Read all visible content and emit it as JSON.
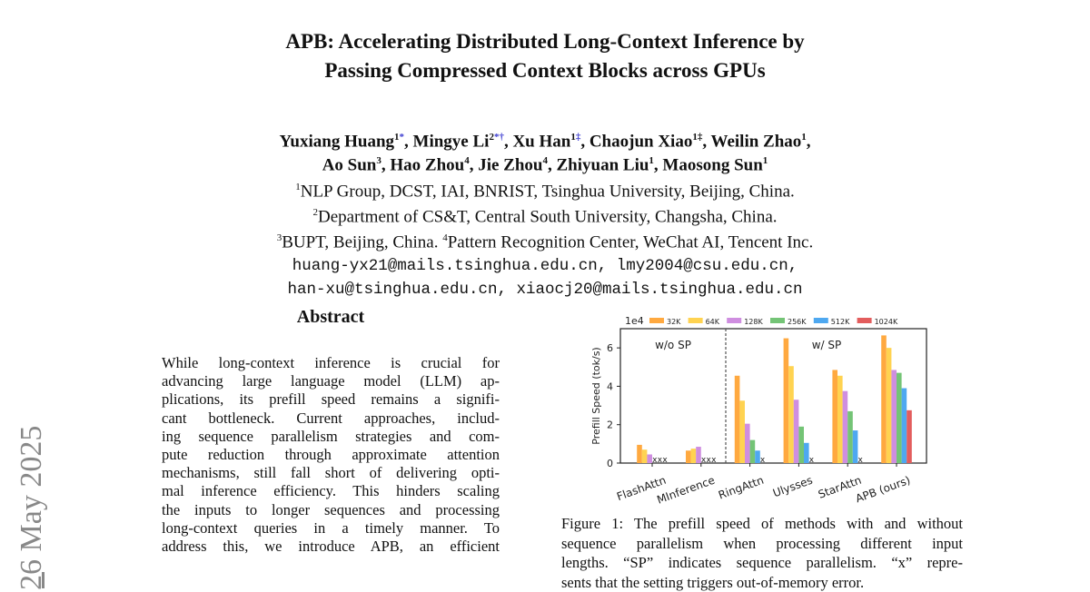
{
  "side_stamp": "26 May 2025",
  "title": {
    "line1": "APB: Accelerating Distributed Long-Context Inference by",
    "line2": "Passing Compressed Context Blocks across GPUs"
  },
  "authors": [
    {
      "name": "Yuxiang Huang",
      "sup": "1",
      "mark": "*"
    },
    {
      "name": "Mingye Li",
      "sup": "2",
      "mark": "*†"
    },
    {
      "name": "Xu Han",
      "sup": "1",
      "mark": "‡"
    },
    {
      "name": "Chaojun Xiao",
      "sup": "1‡",
      "mark": ""
    },
    {
      "name": "Weilin Zhao",
      "sup": "1",
      "mark": ""
    },
    {
      "name": "Ao Sun",
      "sup": "3",
      "mark": ""
    },
    {
      "name": "Hao Zhou",
      "sup": "4",
      "mark": ""
    },
    {
      "name": "Jie Zhou",
      "sup": "4",
      "mark": ""
    },
    {
      "name": "Zhiyuan Liu",
      "sup": "1",
      "mark": ""
    },
    {
      "name": "Maosong Sun",
      "sup": "1",
      "mark": ""
    }
  ],
  "affiliations": {
    "a1_sup": "1",
    "a1": "NLP Group, DCST, IAI, BNRIST, Tsinghua University, Beijing, China.",
    "a2_sup": "2",
    "a2": "Department of CS&T, Central South University, Changsha, China.",
    "a3_sup": "3",
    "a3": "BUPT, Beijing, China. ",
    "a4_sup": "4",
    "a4": "Pattern Recognition Center, WeChat AI, Tencent Inc."
  },
  "emails": {
    "line1": "huang-yx21@mails.tsinghua.edu.cn, lmy2004@csu.edu.cn,",
    "line2": "han-xu@tsinghua.edu.cn, xiaocj20@mails.tsinghua.edu.cn"
  },
  "abstract": {
    "heading": "Abstract",
    "lines": [
      "While long-context inference is crucial for",
      "advancing large language model (LLM) ap-",
      "plications, its prefill speed remains a signifi-",
      "cant bottleneck. Current approaches, includ-",
      "ing sequence parallelism strategies and com-",
      "pute reduction through approximate attention",
      "mechanisms, still fall short of delivering opti-",
      "mal inference efficiency. This hinders scaling",
      "the inputs to longer sequences and processing",
      "long-context queries in a timely manner. To",
      "address this, we introduce APB, an efficient"
    ]
  },
  "figure_caption": {
    "lines": [
      "Figure 1: The prefill speed of methods with and without",
      "sequence parallelism when processing different input",
      "lengths. “SP” indicates sequence parallelism. “x” repre-",
      "sents that the setting triggers out-of-memory error."
    ]
  },
  "chart_data": {
    "type": "bar",
    "title": "",
    "xlabel": "",
    "ylabel": "Prefill Speed (tok/s)",
    "y_scale_label": "1e4",
    "ylim": [
      0,
      7
    ],
    "yticks": [
      "0",
      "2",
      "4",
      "6"
    ],
    "ytick_values": [
      0,
      2,
      4,
      6
    ],
    "grid": false,
    "legend_position": "top",
    "categories": [
      "FlashAttn",
      "MInference",
      "RingAttn",
      "Ulysses",
      "StarAttn",
      "APB (ours)"
    ],
    "region_labels": {
      "left": "w/o SP",
      "right": "w/ SP"
    },
    "oom_marker": "x",
    "series": [
      {
        "name": "32K",
        "color": "#ffa940",
        "values": [
          0.95,
          0.65,
          4.55,
          6.5,
          4.85,
          6.65
        ]
      },
      {
        "name": "64K",
        "color": "#ffd351",
        "values": [
          0.7,
          0.75,
          3.25,
          5.05,
          4.55,
          6.0
        ]
      },
      {
        "name": "128K",
        "color": "#cf8ee0",
        "values": [
          0.45,
          0.85,
          2.05,
          3.3,
          3.75,
          4.85
        ]
      },
      {
        "name": "256K",
        "color": "#74c476",
        "values": [
          null,
          null,
          1.2,
          1.9,
          2.7,
          4.7
        ]
      },
      {
        "name": "512K",
        "color": "#4ea8f0",
        "values": [
          null,
          null,
          0.65,
          1.05,
          1.7,
          3.9
        ]
      },
      {
        "name": "1024K",
        "color": "#e35d5d",
        "values": [
          null,
          null,
          null,
          null,
          null,
          2.75
        ]
      }
    ]
  }
}
